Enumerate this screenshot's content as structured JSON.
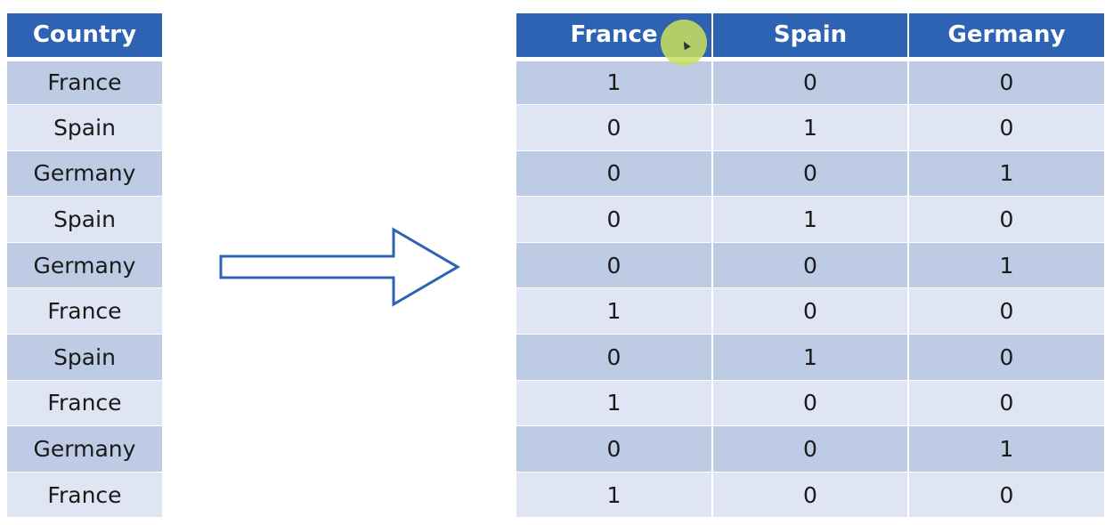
{
  "left_table": {
    "header": "Country",
    "rows": [
      "France",
      "Spain",
      "Germany",
      "Spain",
      "Germany",
      "France",
      "Spain",
      "France",
      "Germany",
      "France"
    ]
  },
  "right_table": {
    "headers": [
      "France",
      "Spain",
      "Germany"
    ],
    "rows": [
      [
        "1",
        "0",
        "0"
      ],
      [
        "0",
        "1",
        "0"
      ],
      [
        "0",
        "0",
        "1"
      ],
      [
        "0",
        "1",
        "0"
      ],
      [
        "0",
        "0",
        "1"
      ],
      [
        "1",
        "0",
        "0"
      ],
      [
        "0",
        "1",
        "0"
      ],
      [
        "1",
        "0",
        "0"
      ],
      [
        "0",
        "0",
        "1"
      ],
      [
        "1",
        "0",
        "0"
      ]
    ]
  },
  "colors": {
    "header_bg": "#2e63b4",
    "row_dark": "#bdcbe5",
    "row_light": "#dfe5f2",
    "arrow_stroke": "#2e63b4"
  },
  "arrow_icon": "right-arrow-icon",
  "cursor_icon": "cursor-icon"
}
